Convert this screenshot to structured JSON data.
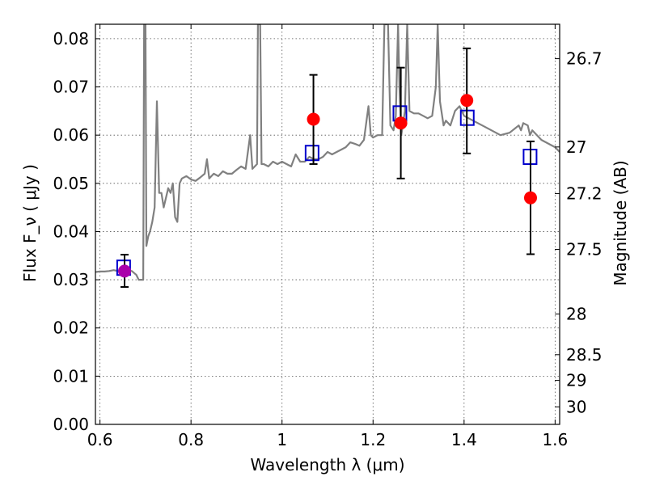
{
  "chart_data": {
    "type": "scatter",
    "xlabel": "Wavelength  λ (μm)",
    "ylabel": "Flux  F_ν ( μJy )",
    "ylabel_right": "Magnitude (AB)",
    "xlim": [
      0.59,
      1.61
    ],
    "ylim": [
      0,
      0.083
    ],
    "grid": true,
    "x_ticks": [
      {
        "value": 0.6,
        "label": "0.6"
      },
      {
        "value": 0.8,
        "label": "0.8"
      },
      {
        "value": 1.0,
        "label": "1"
      },
      {
        "value": 1.2,
        "label": "1.2"
      },
      {
        "value": 1.4,
        "label": "1.4"
      },
      {
        "value": 1.6,
        "label": "1.6"
      }
    ],
    "y_ticks": [
      {
        "value": 0.0,
        "label": "0.00"
      },
      {
        "value": 0.01,
        "label": "0.01"
      },
      {
        "value": 0.02,
        "label": "0.02"
      },
      {
        "value": 0.03,
        "label": "0.03"
      },
      {
        "value": 0.04,
        "label": "0.04"
      },
      {
        "value": 0.05,
        "label": "0.05"
      },
      {
        "value": 0.06,
        "label": "0.06"
      },
      {
        "value": 0.07,
        "label": "0.07"
      },
      {
        "value": 0.08,
        "label": "0.08"
      }
    ],
    "right_ticks": [
      {
        "mag": 26.7,
        "label": "26.7"
      },
      {
        "mag": 27.0,
        "label": "27"
      },
      {
        "mag": 27.2,
        "label": "27.2"
      },
      {
        "mag": 27.5,
        "label": "27.5"
      },
      {
        "mag": 28.0,
        "label": "28"
      },
      {
        "mag": 28.5,
        "label": "28.5"
      },
      {
        "mag": 29.0,
        "label": "29"
      },
      {
        "mag": 30.0,
        "label": "30"
      }
    ],
    "series": [
      {
        "style": "line",
        "color": "#808080",
        "points": [
          [
            0.59,
            0.0316
          ],
          [
            0.6,
            0.0317
          ],
          [
            0.61,
            0.0317
          ],
          [
            0.62,
            0.0318
          ],
          [
            0.63,
            0.032
          ],
          [
            0.64,
            0.0318
          ],
          [
            0.655,
            0.032
          ],
          [
            0.67,
            0.0318
          ],
          [
            0.68,
            0.031
          ],
          [
            0.685,
            0.03
          ],
          [
            0.69,
            0.03
          ],
          [
            0.695,
            0.03
          ],
          [
            0.697,
            0.083
          ],
          [
            0.7,
            0.083
          ],
          [
            0.702,
            0.037
          ],
          [
            0.706,
            0.039
          ],
          [
            0.71,
            0.04
          ],
          [
            0.715,
            0.042
          ],
          [
            0.72,
            0.045
          ],
          [
            0.725,
            0.067
          ],
          [
            0.73,
            0.048
          ],
          [
            0.735,
            0.048
          ],
          [
            0.74,
            0.045
          ],
          [
            0.745,
            0.047
          ],
          [
            0.75,
            0.049
          ],
          [
            0.755,
            0.048
          ],
          [
            0.76,
            0.05
          ],
          [
            0.765,
            0.043
          ],
          [
            0.77,
            0.042
          ],
          [
            0.775,
            0.05
          ],
          [
            0.78,
            0.051
          ],
          [
            0.79,
            0.0515
          ],
          [
            0.8,
            0.0508
          ],
          [
            0.81,
            0.0505
          ],
          [
            0.82,
            0.0512
          ],
          [
            0.83,
            0.052
          ],
          [
            0.835,
            0.055
          ],
          [
            0.84,
            0.051
          ],
          [
            0.85,
            0.052
          ],
          [
            0.86,
            0.0515
          ],
          [
            0.87,
            0.0525
          ],
          [
            0.88,
            0.052
          ],
          [
            0.89,
            0.052
          ],
          [
            0.9,
            0.0528
          ],
          [
            0.91,
            0.0535
          ],
          [
            0.92,
            0.053
          ],
          [
            0.93,
            0.06
          ],
          [
            0.935,
            0.053
          ],
          [
            0.94,
            0.0535
          ],
          [
            0.945,
            0.054
          ],
          [
            0.947,
            0.083
          ],
          [
            0.952,
            0.083
          ],
          [
            0.955,
            0.054
          ],
          [
            0.96,
            0.054
          ],
          [
            0.97,
            0.0535
          ],
          [
            0.98,
            0.0545
          ],
          [
            0.99,
            0.054
          ],
          [
            1.0,
            0.0545
          ],
          [
            1.01,
            0.054
          ],
          [
            1.02,
            0.0535
          ],
          [
            1.03,
            0.056
          ],
          [
            1.04,
            0.0545
          ],
          [
            1.05,
            0.0545
          ],
          [
            1.06,
            0.0555
          ],
          [
            1.07,
            0.055
          ],
          [
            1.08,
            0.055
          ],
          [
            1.09,
            0.0555
          ],
          [
            1.1,
            0.0565
          ],
          [
            1.11,
            0.056
          ],
          [
            1.12,
            0.0565
          ],
          [
            1.13,
            0.057
          ],
          [
            1.14,
            0.0575
          ],
          [
            1.15,
            0.0585
          ],
          [
            1.16,
            0.0582
          ],
          [
            1.17,
            0.0578
          ],
          [
            1.18,
            0.059
          ],
          [
            1.19,
            0.066
          ],
          [
            1.195,
            0.06
          ],
          [
            1.2,
            0.0595
          ],
          [
            1.21,
            0.06
          ],
          [
            1.22,
            0.06
          ],
          [
            1.225,
            0.083
          ],
          [
            1.233,
            0.083
          ],
          [
            1.238,
            0.062
          ],
          [
            1.245,
            0.061
          ],
          [
            1.25,
            0.064
          ],
          [
            1.255,
            0.083
          ],
          [
            1.258,
            0.07
          ],
          [
            1.262,
            0.06
          ],
          [
            1.27,
            0.065
          ],
          [
            1.275,
            0.083
          ],
          [
            1.28,
            0.065
          ],
          [
            1.29,
            0.0645
          ],
          [
            1.3,
            0.0645
          ],
          [
            1.31,
            0.064
          ],
          [
            1.32,
            0.0635
          ],
          [
            1.33,
            0.064
          ],
          [
            1.338,
            0.07
          ],
          [
            1.342,
            0.083
          ],
          [
            1.347,
            0.067
          ],
          [
            1.355,
            0.062
          ],
          [
            1.36,
            0.063
          ],
          [
            1.37,
            0.062
          ],
          [
            1.38,
            0.065
          ],
          [
            1.39,
            0.066
          ],
          [
            1.4,
            0.064
          ],
          [
            1.42,
            0.063
          ],
          [
            1.44,
            0.062
          ],
          [
            1.46,
            0.061
          ],
          [
            1.48,
            0.06
          ],
          [
            1.5,
            0.0605
          ],
          [
            1.52,
            0.062
          ],
          [
            1.525,
            0.061
          ],
          [
            1.53,
            0.0625
          ],
          [
            1.54,
            0.062
          ],
          [
            1.545,
            0.06
          ],
          [
            1.55,
            0.061
          ],
          [
            1.56,
            0.06
          ],
          [
            1.57,
            0.059
          ],
          [
            1.58,
            0.0585
          ],
          [
            1.59,
            0.058
          ],
          [
            1.6,
            0.0575
          ],
          [
            1.61,
            0.0565
          ]
        ]
      },
      {
        "style": "square",
        "color": "#0000cc",
        "points": [
          [
            0.652,
            0.0325
          ],
          [
            1.066,
            0.0563
          ],
          [
            1.259,
            0.0645
          ],
          [
            1.407,
            0.0636
          ],
          [
            1.545,
            0.0555
          ]
        ]
      },
      {
        "style": "circle",
        "color": "#ff0000",
        "points": [
          {
            "x": 1.069,
            "y": 0.0633,
            "yerr_low": 0.054,
            "yerr_high": 0.0725
          },
          {
            "x": 1.261,
            "y": 0.0625,
            "yerr_low": 0.051,
            "yerr_high": 0.074
          },
          {
            "x": 1.406,
            "y": 0.0672,
            "yerr_low": 0.0562,
            "yerr_high": 0.078
          },
          {
            "x": 1.546,
            "y": 0.047,
            "yerr_low": 0.0353,
            "yerr_high": 0.0587
          }
        ]
      },
      {
        "style": "circle",
        "color": "#aa00aa",
        "points": [
          {
            "x": 0.654,
            "y": 0.0318,
            "yerr_low": 0.0285,
            "yerr_high": 0.0352
          }
        ]
      }
    ]
  }
}
